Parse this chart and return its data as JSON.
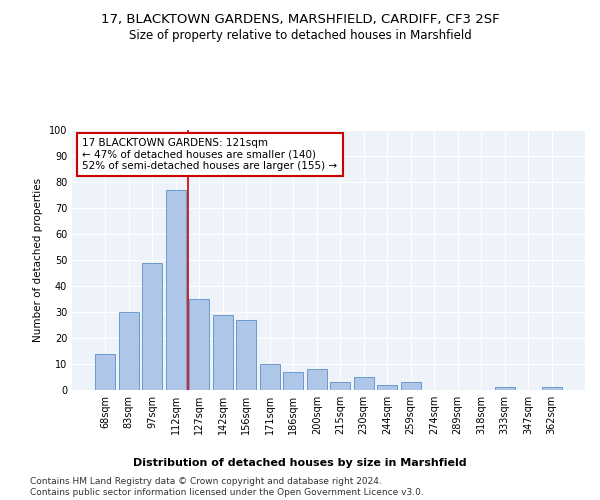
{
  "title": "17, BLACKTOWN GARDENS, MARSHFIELD, CARDIFF, CF3 2SF",
  "subtitle": "Size of property relative to detached houses in Marshfield",
  "xlabel": "Distribution of detached houses by size in Marshfield",
  "ylabel": "Number of detached properties",
  "categories": [
    "68sqm",
    "83sqm",
    "97sqm",
    "112sqm",
    "127sqm",
    "142sqm",
    "156sqm",
    "171sqm",
    "186sqm",
    "200sqm",
    "215sqm",
    "230sqm",
    "244sqm",
    "259sqm",
    "274sqm",
    "289sqm",
    "318sqm",
    "333sqm",
    "347sqm",
    "362sqm"
  ],
  "values": [
    14,
    30,
    49,
    77,
    35,
    29,
    27,
    10,
    7,
    8,
    3,
    5,
    2,
    3,
    0,
    0,
    0,
    1,
    0,
    1
  ],
  "bar_color": "#aec6e8",
  "bar_edge_color": "#5b8fc9",
  "vline_x_index": 3.5,
  "vline_color": "#cc0000",
  "annotation_text": "17 BLACKTOWN GARDENS: 121sqm\n← 47% of detached houses are smaller (140)\n52% of semi-detached houses are larger (155) →",
  "annotation_box_color": "#ffffff",
  "annotation_box_edge": "#cc0000",
  "ylim": [
    0,
    100
  ],
  "yticks": [
    0,
    10,
    20,
    30,
    40,
    50,
    60,
    70,
    80,
    90,
    100
  ],
  "background_color": "#eef2f9",
  "footer": "Contains HM Land Registry data © Crown copyright and database right 2024.\nContains public sector information licensed under the Open Government Licence v3.0.",
  "title_fontsize": 9.5,
  "subtitle_fontsize": 8.5,
  "xlabel_fontsize": 8,
  "ylabel_fontsize": 7.5,
  "tick_fontsize": 7,
  "annotation_fontsize": 7.5,
  "footer_fontsize": 6.5
}
